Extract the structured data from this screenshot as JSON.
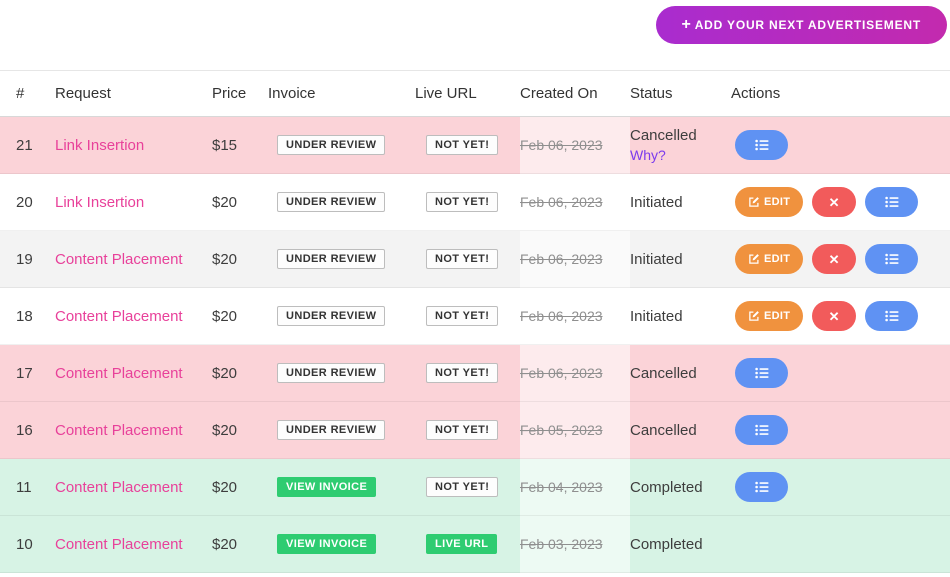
{
  "topbar": {
    "add_button_plus": "+",
    "add_button_label": "ADD YOUR NEXT ADVERTISEMENT"
  },
  "theme": {
    "accent_magenta_start": "#a92ccf",
    "accent_magenta_end": "#c32aae",
    "row_cancelled": "#fbd3d8",
    "row_completed": "#d7f3e5",
    "badge_green": "#2ecc71",
    "btn_edit": "#f0923e",
    "btn_delete": "#f25b5b",
    "btn_details": "#5f92f3",
    "link_pink": "#e8419a",
    "link_purple": "#7c3bed"
  },
  "table": {
    "columns": [
      "#",
      "Request",
      "Price",
      "Invoice",
      "Live URL",
      "Created On",
      "Status",
      "Actions"
    ],
    "action_labels": {
      "edit": "EDIT",
      "delete": "",
      "details": ""
    },
    "rows": [
      {
        "num": "21",
        "request": "Link Insertion",
        "price": "$15",
        "invoice": {
          "label": "UNDER REVIEW",
          "variant": "light"
        },
        "live": {
          "label": "NOT YET!",
          "variant": "light"
        },
        "created": "Feb 06, 2023",
        "status": "Cancelled",
        "status_link": "Why?",
        "tone": "cancelled",
        "actions": [
          "details"
        ]
      },
      {
        "num": "20",
        "request": "Link Insertion",
        "price": "$20",
        "invoice": {
          "label": "UNDER REVIEW",
          "variant": "light"
        },
        "live": {
          "label": "NOT YET!",
          "variant": "light"
        },
        "created": "Feb 06, 2023",
        "status": "Initiated",
        "tone": "",
        "actions": [
          "edit",
          "delete",
          "details"
        ]
      },
      {
        "num": "19",
        "request": "Content Placement",
        "price": "$20",
        "invoice": {
          "label": "UNDER REVIEW",
          "variant": "light"
        },
        "live": {
          "label": "NOT YET!",
          "variant": "light"
        },
        "created": "Feb 06, 2023",
        "status": "Initiated",
        "tone": "",
        "actions": [
          "edit",
          "delete",
          "details"
        ]
      },
      {
        "num": "18",
        "request": "Content Placement",
        "price": "$20",
        "invoice": {
          "label": "UNDER REVIEW",
          "variant": "light"
        },
        "live": {
          "label": "NOT YET!",
          "variant": "light"
        },
        "created": "Feb 06, 2023",
        "status": "Initiated",
        "tone": "",
        "actions": [
          "edit",
          "delete",
          "details"
        ]
      },
      {
        "num": "17",
        "request": "Content Placement",
        "price": "$20",
        "invoice": {
          "label": "UNDER REVIEW",
          "variant": "light"
        },
        "live": {
          "label": "NOT YET!",
          "variant": "light"
        },
        "created": "Feb 06, 2023",
        "status": "Cancelled",
        "tone": "cancelled",
        "actions": [
          "details"
        ]
      },
      {
        "num": "16",
        "request": "Content Placement",
        "price": "$20",
        "invoice": {
          "label": "UNDER REVIEW",
          "variant": "light"
        },
        "live": {
          "label": "NOT YET!",
          "variant": "light"
        },
        "created": "Feb 05, 2023",
        "status": "Cancelled",
        "tone": "cancelled",
        "actions": [
          "details"
        ]
      },
      {
        "num": "11",
        "request": "Content Placement",
        "price": "$20",
        "invoice": {
          "label": "VIEW INVOICE",
          "variant": "green"
        },
        "live": {
          "label": "NOT YET!",
          "variant": "light"
        },
        "created": "Feb 04, 2023",
        "status": "Completed",
        "tone": "completed",
        "actions": [
          "details"
        ]
      },
      {
        "num": "10",
        "request": "Content Placement",
        "price": "$20",
        "invoice": {
          "label": "VIEW INVOICE",
          "variant": "green"
        },
        "live": {
          "label": "LIVE URL",
          "variant": "green"
        },
        "created": "Feb 03, 2023",
        "status": "Completed",
        "tone": "completed",
        "actions": []
      }
    ]
  }
}
